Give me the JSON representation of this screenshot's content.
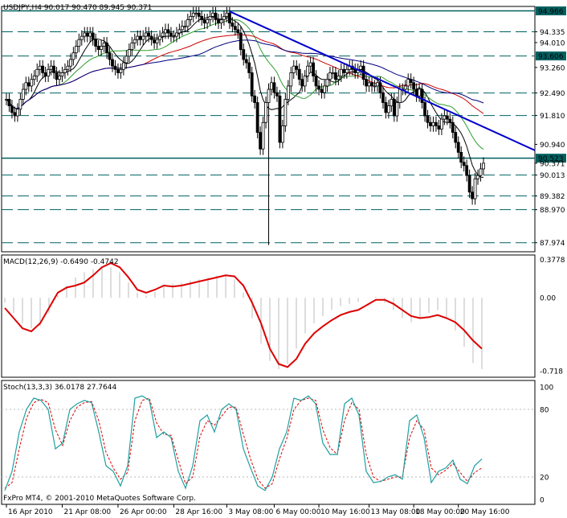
{
  "header": {
    "text": "USDJPY,H4  90.017 90.470 89.945 90.371"
  },
  "footer": {
    "text": "FxPro MT4, © 2001-2010 MetaQuotes Software Corp."
  },
  "colors": {
    "candle": "#000000",
    "level": "#006060",
    "trendline": "#0000cc",
    "ma_fast": "#000000",
    "ma_mid": "#2e9e2e",
    "ma_slow": "#cc0000",
    "ma_long": "#000080",
    "macd_signal": "#dd0000",
    "macd_hist": "#bbbbbb",
    "stoch_main": "#20a0a0",
    "stoch_signal": "#dd0000"
  },
  "chart_data": [
    {
      "type": "candlestick",
      "title": "USDJPY,H4",
      "ohlc_last": {
        "open": 90.017,
        "high": 90.47,
        "low": 89.945,
        "close": 90.371
      },
      "ylim": [
        87.7,
        95.1
      ],
      "y_ticks": [
        94.966,
        94.335,
        94.01,
        93.606,
        93.26,
        92.49,
        91.81,
        90.94,
        90.523,
        90.371,
        90.013,
        89.382,
        88.97,
        87.974
      ],
      "price_labels": [
        "94.966",
        "94.335",
        "94.010",
        "93.606",
        "93.260",
        "92.490",
        "91.810",
        "90.940",
        "90.523",
        "90.371",
        "90.013",
        "89.382",
        "88.970",
        "87.974"
      ],
      "highlighted_labels": [
        "94.966",
        "93.606",
        "90.523"
      ],
      "levels": [
        94.966,
        94.335,
        93.606,
        92.49,
        91.81,
        90.523,
        90.013,
        89.382,
        88.97,
        87.974
      ],
      "solid_levels": [
        94.966,
        90.523
      ],
      "trendline": {
        "from": {
          "bar": 80,
          "price": 94.95
        },
        "to": {
          "bar": 174,
          "price": 91.35
        }
      },
      "x_labels": [
        "16 Apr 2010",
        "21 Apr 08:00",
        "26 Apr 00:00",
        "28 Apr 16:00",
        "3 May 08:00",
        "6 May 00:00",
        "10 May 16:00",
        "13 May 08:00",
        "18 May 00:00",
        "20 May 16:00"
      ],
      "x_label_bars": [
        0,
        20,
        40,
        60,
        79,
        96,
        112,
        130,
        146,
        162
      ],
      "closes": [
        92.3,
        92.1,
        91.9,
        91.8,
        92.0,
        92.3,
        92.6,
        92.8,
        92.7,
        92.9,
        93.0,
        93.2,
        93.3,
        93.1,
        93.0,
        93.2,
        93.3,
        93.1,
        92.9,
        93.0,
        93.1,
        93.2,
        93.3,
        93.5,
        93.7,
        93.9,
        94.1,
        94.2,
        94.3,
        94.2,
        94.3,
        94.1,
        93.9,
        93.8,
        93.9,
        94.0,
        93.7,
        93.5,
        93.3,
        93.2,
        93.1,
        93.2,
        93.4,
        93.6,
        93.8,
        94.0,
        94.1,
        94.2,
        94.1,
        94.2,
        94.3,
        94.2,
        94.1,
        94.0,
        94.1,
        94.2,
        94.3,
        94.4,
        94.3,
        94.2,
        94.2,
        94.3,
        94.4,
        94.5,
        94.5,
        94.7,
        94.8,
        94.9,
        94.9,
        94.8,
        94.7,
        94.6,
        94.7,
        94.8,
        94.9,
        94.7,
        94.6,
        94.7,
        94.8,
        94.9,
        94.6,
        94.5,
        94.4,
        94.3,
        93.8,
        93.5,
        93.4,
        93.1,
        92.4,
        92.2,
        91.3,
        90.8,
        91.6,
        92.2,
        92.6,
        92.8,
        92.5,
        92.4,
        91.0,
        91.5,
        92.3,
        92.7,
        93.1,
        93.3,
        93.2,
        92.9,
        92.7,
        93.0,
        93.3,
        93.4,
        93.0,
        92.7,
        92.6,
        92.5,
        92.7,
        92.9,
        93.1,
        93.1,
        92.9,
        93.0,
        93.2,
        93.1,
        93.2,
        93.3,
        93.2,
        93.1,
        93.2,
        93.3,
        92.9,
        92.7,
        92.8,
        92.7,
        92.7,
        92.8,
        92.5,
        92.2,
        91.9,
        92.1,
        92.3,
        91.8,
        92.2,
        92.6,
        92.6,
        92.7,
        92.9,
        92.8,
        92.6,
        92.4,
        92.6,
        92.2,
        91.8,
        91.6,
        91.5,
        91.6,
        91.5,
        91.4,
        91.7,
        91.8,
        91.7,
        91.6,
        91.3,
        91.0,
        90.7,
        90.4,
        90.3,
        90.0,
        89.5,
        89.3,
        89.9,
        90.0,
        90.2,
        90.37
      ],
      "min_wick": {
        "bar": 94,
        "low": 87.9
      }
    },
    {
      "type": "line",
      "title": "MACD(12,26,9) -0.6490 -0.4742",
      "ylim": [
        -0.78,
        0.42
      ],
      "y_ticks": [
        0.3778,
        0.0,
        -0.718
      ],
      "y_tick_labels": [
        "0.3778",
        "0.00",
        "-0.718"
      ],
      "signal": [
        -0.1,
        -0.2,
        -0.3,
        -0.33,
        -0.25,
        -0.1,
        0.05,
        0.1,
        0.12,
        0.15,
        0.22,
        0.3,
        0.34,
        0.3,
        0.2,
        0.08,
        0.05,
        0.08,
        0.12,
        0.11,
        0.12,
        0.14,
        0.16,
        0.18,
        0.2,
        0.22,
        0.21,
        0.12,
        -0.05,
        -0.25,
        -0.5,
        -0.65,
        -0.68,
        -0.6,
        -0.45,
        -0.35,
        -0.28,
        -0.22,
        -0.17,
        -0.14,
        -0.12,
        -0.07,
        -0.02,
        -0.02,
        -0.06,
        -0.12,
        -0.18,
        -0.2,
        -0.19,
        -0.17,
        -0.2,
        -0.24,
        -0.32,
        -0.42,
        -0.5
      ],
      "histogram": [
        -0.05,
        -0.15,
        -0.25,
        -0.3,
        -0.28,
        -0.15,
        0.02,
        0.12,
        0.2,
        0.25,
        0.28,
        0.3,
        0.3,
        0.25,
        0.15,
        0.05,
        0.02,
        0.06,
        0.12,
        0.14,
        0.15,
        0.17,
        0.18,
        0.2,
        0.22,
        0.22,
        0.18,
        0.05,
        -0.2,
        -0.45,
        -0.62,
        -0.7,
        -0.65,
        -0.5,
        -0.35,
        -0.25,
        -0.18,
        -0.12,
        -0.08,
        -0.06,
        -0.04,
        0.0,
        0.01,
        -0.05,
        -0.12,
        -0.2,
        -0.24,
        -0.2,
        -0.15,
        -0.12,
        -0.2,
        -0.32,
        -0.48,
        -0.64,
        -0.7
      ]
    },
    {
      "type": "line",
      "title": "Stoch(13,3,3) 36.0178 27.7644",
      "ylim": [
        0,
        100
      ],
      "y_ticks": [
        100,
        80,
        20,
        0
      ],
      "y_tick_labels": [
        "100",
        "80",
        "20",
        "0"
      ],
      "main": [
        8,
        25,
        60,
        80,
        90,
        88,
        80,
        45,
        50,
        80,
        85,
        88,
        86,
        60,
        30,
        25,
        12,
        30,
        90,
        92,
        88,
        55,
        60,
        55,
        25,
        10,
        30,
        70,
        75,
        60,
        80,
        85,
        80,
        45,
        28,
        12,
        8,
        20,
        45,
        60,
        90,
        88,
        92,
        85,
        50,
        40,
        40,
        85,
        90,
        75,
        25,
        15,
        16,
        20,
        22,
        18,
        70,
        75,
        55,
        15,
        25,
        28,
        35,
        18,
        14,
        30,
        36
      ],
      "signal": [
        10,
        15,
        45,
        72,
        86,
        89,
        86,
        62,
        48,
        70,
        82,
        86,
        87,
        70,
        42,
        28,
        18,
        24,
        70,
        88,
        90,
        68,
        58,
        57,
        35,
        14,
        20,
        56,
        70,
        66,
        74,
        82,
        82,
        58,
        36,
        18,
        10,
        14,
        36,
        54,
        80,
        88,
        90,
        88,
        62,
        46,
        40,
        70,
        86,
        80,
        40,
        20,
        16,
        18,
        20,
        20,
        55,
        70,
        62,
        28,
        22,
        26,
        32,
        24,
        16,
        24,
        28
      ]
    }
  ]
}
